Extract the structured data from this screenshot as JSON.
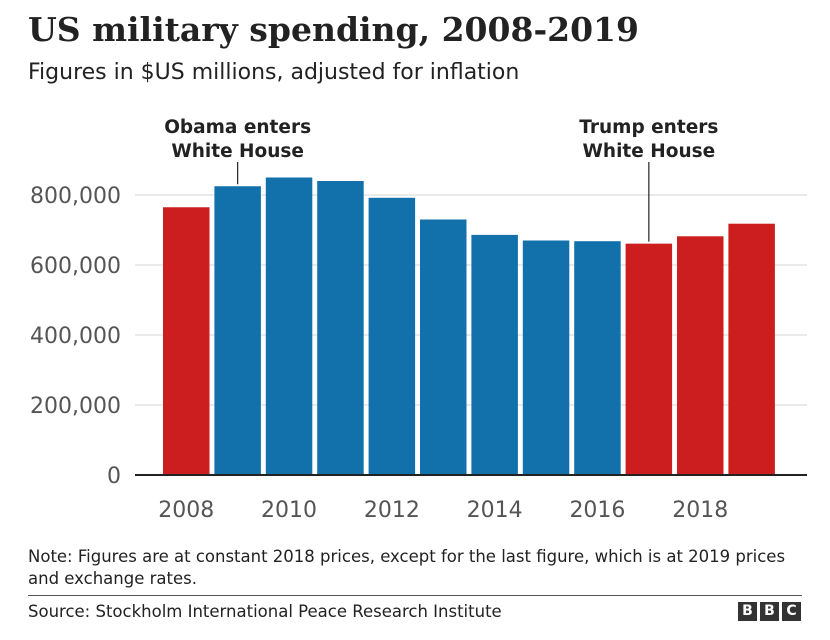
{
  "header": {
    "title": "US military spending, 2008-2019",
    "subtitle": "Figures in $US millions, adjusted for inflation"
  },
  "chart_data": {
    "type": "bar",
    "categories": [
      "2008",
      "2009",
      "2010",
      "2011",
      "2012",
      "2013",
      "2014",
      "2015",
      "2016",
      "2017",
      "2018",
      "2019"
    ],
    "values": [
      765000,
      825000,
      850000,
      840000,
      792000,
      730000,
      686000,
      670000,
      668000,
      661000,
      682000,
      718000
    ],
    "bar_colors": [
      "#cc1e1e",
      "#1270ab",
      "#1270ab",
      "#1270ab",
      "#1270ab",
      "#1270ab",
      "#1270ab",
      "#1270ab",
      "#1270ab",
      "#cc1e1e",
      "#cc1e1e",
      "#cc1e1e"
    ],
    "x_tick_labels": [
      "2008",
      "2010",
      "2012",
      "2014",
      "2016",
      "2018"
    ],
    "y_ticks": [
      0,
      200000,
      400000,
      600000,
      800000
    ],
    "y_tick_labels": [
      "0",
      "200,000",
      "400,000",
      "600,000",
      "800,000"
    ],
    "ylim": [
      0,
      880000
    ],
    "grid": true,
    "annotations": [
      {
        "lines": [
          "Obama enters",
          "White House"
        ],
        "category": "2009"
      },
      {
        "lines": [
          "Trump enters",
          "White House"
        ],
        "category": "2017"
      }
    ],
    "colors": {
      "republican": "#cc1e1e",
      "democrat": "#1270ab",
      "grid": "#d6d6d6",
      "axis": "#222222",
      "tick_text": "#555555"
    }
  },
  "footer": {
    "note": "Note: Figures are at constant 2018 prices, except for the last figure, which is at 2019 prices and exchange rates.",
    "source": "Source: Stockholm International Peace Research Institute",
    "logo_letters": [
      "B",
      "B",
      "C"
    ]
  }
}
